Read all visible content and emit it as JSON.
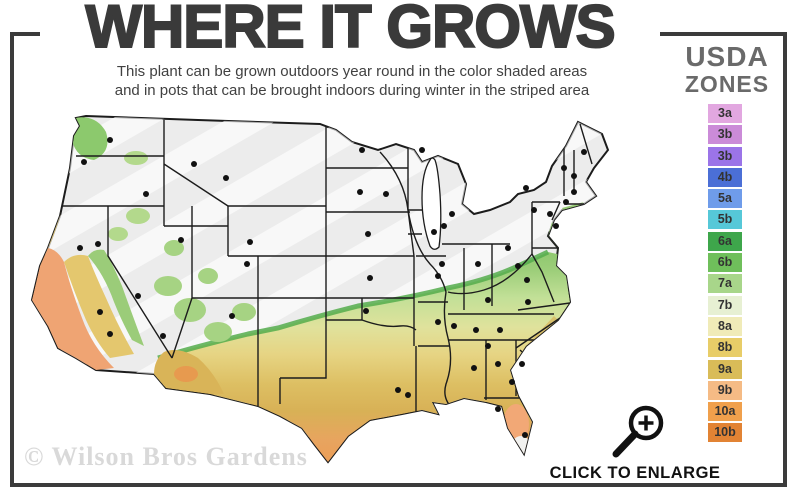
{
  "header": {
    "title": "WHERE IT GROWS",
    "subtitle_line1": "This plant can be grown outdoors year round in the color shaded areas",
    "subtitle_line2": "and in pots that can be brought indoors during winter in the striped area"
  },
  "legend": {
    "title_line1": "USDA",
    "title_line2": "ZONES",
    "zones": [
      {
        "label": "3a",
        "color": "#e2a7e0"
      },
      {
        "label": "3b",
        "color": "#cb8bd8"
      },
      {
        "label": "3b",
        "color": "#9b74e8"
      },
      {
        "label": "4b",
        "color": "#4b6fd6"
      },
      {
        "label": "5a",
        "color": "#6f9cea"
      },
      {
        "label": "5b",
        "color": "#56c8d8"
      },
      {
        "label": "6a",
        "color": "#3ea64b"
      },
      {
        "label": "6b",
        "color": "#6fbf5b"
      },
      {
        "label": "7a",
        "color": "#a8d68a"
      },
      {
        "label": "7b",
        "color": "#e7f0d3"
      },
      {
        "label": "8a",
        "color": "#f0ebb8"
      },
      {
        "label": "8b",
        "color": "#e8cd68"
      },
      {
        "label": "9a",
        "color": "#d9bc58"
      },
      {
        "label": "9b",
        "color": "#f5bb85"
      },
      {
        "label": "10a",
        "color": "#f0a04c"
      },
      {
        "label": "10b",
        "color": "#e28334"
      }
    ]
  },
  "map": {
    "base_color": "#ececec",
    "outline_color": "#1c1c1c",
    "city_dot_color": "#111111",
    "south_gradient": [
      "#86c468",
      "#9dce7a",
      "#c2e097",
      "#e0e29c",
      "#e6d483",
      "#ddbf63",
      "#d8b156",
      "#e8a45f",
      "#ec9c55"
    ],
    "palette": {
      "green": "#8cc96d",
      "light_green": "#a6d383",
      "pale_green": "#b3d98c",
      "gold": "#e2c368",
      "inner_gold": "#e4c76e",
      "sierra_green": "#9bcc79",
      "salmon": "#efa473",
      "orange": "#e79a4f",
      "khaki": "#d9b458",
      "peach": "#f2a876",
      "white_area": "#f1f1ef",
      "fringe_green": "#55ad4c",
      "coast_green": "#96cb74"
    },
    "city_dots": [
      [
        92,
        34
      ],
      [
        66,
        56
      ],
      [
        62,
        142
      ],
      [
        82,
        206
      ],
      [
        92,
        228
      ],
      [
        120,
        190
      ],
      [
        145,
        230
      ],
      [
        80,
        138
      ],
      [
        128,
        88
      ],
      [
        176,
        58
      ],
      [
        208,
        72
      ],
      [
        163,
        134
      ],
      [
        232,
        136
      ],
      [
        229,
        158
      ],
      [
        214,
        210
      ],
      [
        344,
        44
      ],
      [
        342,
        86
      ],
      [
        350,
        128
      ],
      [
        352,
        172
      ],
      [
        348,
        205
      ],
      [
        404,
        44
      ],
      [
        416,
        126
      ],
      [
        420,
        170
      ],
      [
        420,
        216
      ],
      [
        380,
        284
      ],
      [
        390,
        289
      ],
      [
        368,
        88
      ],
      [
        426,
        120
      ],
      [
        424,
        158
      ],
      [
        434,
        108
      ],
      [
        460,
        158
      ],
      [
        490,
        142
      ],
      [
        470,
        194
      ],
      [
        436,
        220
      ],
      [
        458,
        224
      ],
      [
        456,
        262
      ],
      [
        480,
        258
      ],
      [
        470,
        240
      ],
      [
        504,
        258
      ],
      [
        494,
        276
      ],
      [
        480,
        303
      ],
      [
        507,
        329
      ],
      [
        482,
        224
      ],
      [
        510,
        196
      ],
      [
        509,
        174
      ],
      [
        500,
        160
      ],
      [
        516,
        104
      ],
      [
        532,
        108
      ],
      [
        508,
        82
      ],
      [
        538,
        120
      ],
      [
        546,
        62
      ],
      [
        556,
        70
      ],
      [
        566,
        46
      ],
      [
        556,
        86
      ],
      [
        548,
        96
      ]
    ]
  },
  "watermark": {
    "text": "© Wilson Bros Gardens"
  },
  "enlarge": {
    "label": "CLICK TO ENLARGE"
  }
}
